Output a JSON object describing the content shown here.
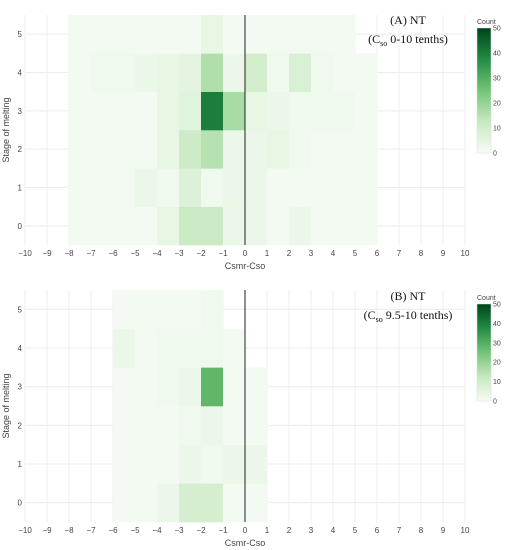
{
  "chart_data": [
    {
      "type": "heatmap",
      "x_categories": [
        -8,
        -7,
        -6,
        -5,
        -4,
        -3,
        -2,
        -1,
        0,
        1,
        2,
        3,
        4,
        5
      ],
      "y_categories": [
        0,
        1,
        2,
        3,
        4,
        5
      ],
      "values": [
        [
          1,
          1,
          1,
          1,
          4,
          12,
          12,
          3,
          3,
          1,
          3,
          1,
          1,
          1
        ],
        [
          1,
          1,
          1,
          3,
          2,
          7,
          2,
          3,
          3,
          1,
          1,
          1,
          1,
          1
        ],
        [
          1,
          1,
          1,
          1,
          4,
          11,
          15,
          3,
          3,
          4,
          2,
          1,
          1,
          1
        ],
        [
          1,
          1,
          1,
          1,
          4,
          6,
          40,
          17,
          4,
          3,
          2,
          2,
          2,
          1
        ],
        [
          1,
          2,
          2,
          3,
          4,
          5,
          16,
          3,
          10,
          2,
          8,
          2,
          1,
          1
        ],
        [
          1,
          1,
          1,
          1,
          1,
          1,
          4,
          1,
          1,
          1,
          1,
          1,
          1,
          0
        ]
      ],
      "vline_x": 0,
      "xlabel": "Csmr-Cso",
      "ylabel": "Stage of melting",
      "xlim": [
        -10,
        10
      ],
      "x_ticks": [
        -10,
        -9,
        -8,
        -7,
        -6,
        -5,
        -4,
        -3,
        -2,
        -1,
        0,
        1,
        2,
        3,
        4,
        5,
        6,
        7,
        8,
        9,
        10
      ],
      "y_ticks": [
        0,
        1,
        2,
        3,
        4,
        5
      ],
      "grid": true,
      "annotation": {
        "line1": "(A)  NT",
        "line2_prefix": "(C",
        "line2_sub": "so",
        "line2_suffix": " 0-10 tenths)"
      },
      "colorbar": {
        "title": "Count",
        "min": 0,
        "max": 50,
        "ticks": [
          0,
          10,
          20,
          30,
          40,
          50
        ]
      }
    },
    {
      "type": "heatmap",
      "x_categories": [
        -6,
        -5,
        -4,
        -3,
        -2,
        -1,
        0
      ],
      "y_categories": [
        0,
        1,
        2,
        3,
        4,
        5
      ],
      "values": [
        [
          1,
          1,
          3,
          9,
          9,
          1,
          1
        ],
        [
          1,
          1,
          1,
          3,
          2,
          3,
          3
        ],
        [
          1,
          1,
          1,
          2,
          3,
          1,
          1
        ],
        [
          1,
          1,
          2,
          3,
          28,
          1,
          1
        ],
        [
          3,
          1,
          2,
          2,
          2,
          1,
          0
        ],
        [
          1,
          1,
          1,
          1,
          2,
          0,
          0
        ]
      ],
      "vline_x": 0,
      "xlabel": "Csmr-Cso",
      "ylabel": "Stage of melting",
      "xlim": [
        -10,
        10
      ],
      "x_ticks": [
        -10,
        -9,
        -8,
        -7,
        -6,
        -5,
        -4,
        -3,
        -2,
        -1,
        0,
        1,
        2,
        3,
        4,
        5,
        6,
        7,
        8,
        9,
        10
      ],
      "y_ticks": [
        0,
        1,
        2,
        3,
        4,
        5
      ],
      "grid": true,
      "annotation": {
        "line1": "(B)  NT",
        "line2_prefix": "(C",
        "line2_sub": "so",
        "line2_suffix": " 9.5-10 tenths)"
      },
      "colorbar": {
        "title": "Count",
        "min": 0,
        "max": 50,
        "ticks": [
          0,
          10,
          20,
          30,
          40,
          50
        ]
      }
    }
  ]
}
